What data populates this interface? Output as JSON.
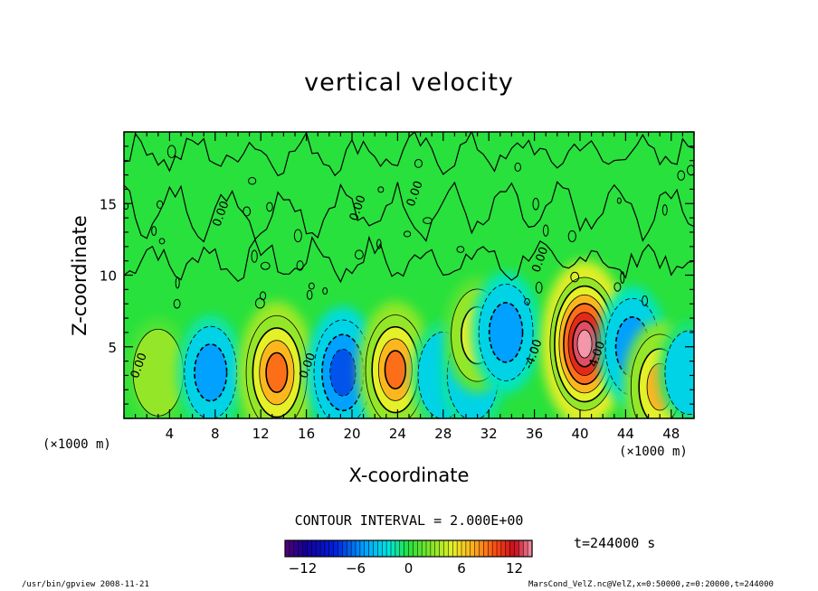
{
  "chart_data": {
    "type": "heatmap",
    "title": "vertical velocity",
    "xlabel": "X-coordinate",
    "ylabel": "Z-coordinate",
    "x_unit_left": "(×1000 m)",
    "x_unit_right": "(×1000 m)",
    "xlim": [
      0,
      50
    ],
    "ylim": [
      0,
      20
    ],
    "x_ticks": [
      4,
      8,
      12,
      16,
      20,
      24,
      28,
      32,
      36,
      40,
      44,
      48
    ],
    "y_ticks": [
      5,
      10,
      15
    ],
    "contour_interval_text": "CONTOUR INTERVAL = 2.000E+00",
    "contour_labels": [
      {
        "text": "0.00",
        "x": 1.6,
        "z": 3.6
      },
      {
        "text": "0.00",
        "x": 16.4,
        "z": 3.6
      },
      {
        "text": "0.00",
        "x": 8.8,
        "z": 14.2
      },
      {
        "text": "0.00",
        "x": 20.8,
        "z": 14.6
      },
      {
        "text": "0.00",
        "x": 25.8,
        "z": 15.6
      },
      {
        "text": "0.00",
        "x": 36.8,
        "z": 11.0
      },
      {
        "text": "-4.00",
        "x": 36.2,
        "z": 4.4
      },
      {
        "text": "4.00",
        "x": 41.8,
        "z": 4.4
      }
    ],
    "cells": [
      {
        "x": 3.0,
        "z": 3.2,
        "w": 3.2
      },
      {
        "x": 7.6,
        "z": 3.2,
        "w": -4.5
      },
      {
        "x": 13.4,
        "z": 3.2,
        "w": 9.5
      },
      {
        "x": 19.2,
        "z": 3.2,
        "w": -7.5
      },
      {
        "x": 23.8,
        "z": 3.4,
        "w": 8.5
      },
      {
        "x": 28.0,
        "z": 3.0,
        "w": -3.2
      },
      {
        "x": 30.6,
        "z": 3.0,
        "w": -3.8
      },
      {
        "x": 31.0,
        "z": 5.8,
        "w": 4.5
      },
      {
        "x": 33.5,
        "z": 6.0,
        "w": -5.5
      },
      {
        "x": 40.4,
        "z": 5.2,
        "w": 14.0
      },
      {
        "x": 44.6,
        "z": 5.0,
        "w": -5.5
      },
      {
        "x": 47.0,
        "z": 2.2,
        "w": 7.5
      },
      {
        "x": 49.6,
        "z": 3.2,
        "w": -2.5
      }
    ],
    "colorbar": {
      "min": -14,
      "max": 14,
      "ticks": [
        -12,
        -6,
        0,
        6,
        12
      ]
    },
    "time_label": "t=244000 s"
  },
  "footer": {
    "left": "/usr/bin/gpview  2008-11-21",
    "right": "MarsCond_VelZ.nc@VelZ,x=0:50000,z=0:20000,t=244000"
  }
}
